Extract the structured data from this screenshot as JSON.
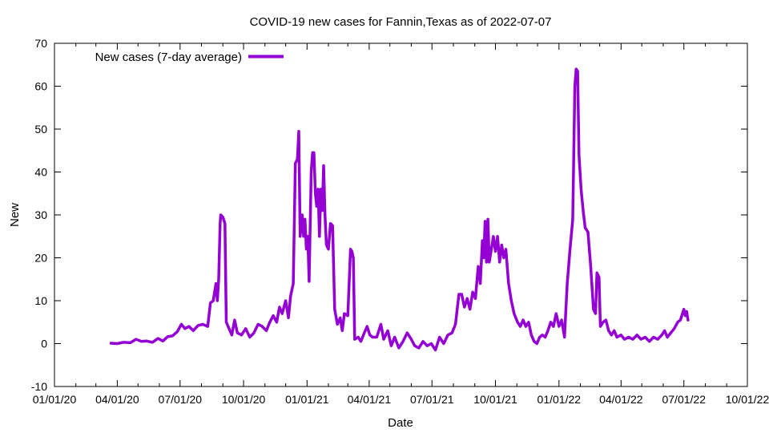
{
  "chart_data": {
    "type": "line",
    "title": "COVID-19 new cases for Fannin,Texas as of 2022-07-07",
    "xlabel": "Date",
    "ylabel": "New",
    "x_range": [
      "2020-01-01",
      "2022-10-01"
    ],
    "ylim": [
      -10,
      70
    ],
    "y_ticks": [
      -10,
      0,
      10,
      20,
      30,
      40,
      50,
      60,
      70
    ],
    "x_ticks": [
      {
        "date": "2020-01-01",
        "label": "01/01/20"
      },
      {
        "date": "2020-04-01",
        "label": "04/01/20"
      },
      {
        "date": "2020-07-01",
        "label": "07/01/20"
      },
      {
        "date": "2020-10-01",
        "label": "10/01/20"
      },
      {
        "date": "2021-01-01",
        "label": "01/01/21"
      },
      {
        "date": "2021-04-01",
        "label": "04/01/21"
      },
      {
        "date": "2021-07-01",
        "label": "07/01/21"
      },
      {
        "date": "2021-10-01",
        "label": "10/01/21"
      },
      {
        "date": "2022-01-01",
        "label": "01/01/22"
      },
      {
        "date": "2022-04-01",
        "label": "04/01/22"
      },
      {
        "date": "2022-07-01",
        "label": "07/01/22"
      },
      {
        "date": "2022-10-01",
        "label": "10/01/22"
      }
    ],
    "grid": false,
    "legend_position": "top-left",
    "series": [
      {
        "name": "New cases (7-day average)",
        "color": "#9400d3",
        "points": [
          [
            "2020-03-23",
            0.1
          ],
          [
            "2020-04-01",
            0.0
          ],
          [
            "2020-04-10",
            0.3
          ],
          [
            "2020-04-20",
            0.2
          ],
          [
            "2020-04-28",
            1.0
          ],
          [
            "2020-05-06",
            0.5
          ],
          [
            "2020-05-14",
            0.6
          ],
          [
            "2020-05-22",
            0.3
          ],
          [
            "2020-05-30",
            1.2
          ],
          [
            "2020-06-06",
            0.6
          ],
          [
            "2020-06-13",
            1.6
          ],
          [
            "2020-06-20",
            1.8
          ],
          [
            "2020-06-27",
            2.8
          ],
          [
            "2020-07-03",
            4.5
          ],
          [
            "2020-07-08",
            3.5
          ],
          [
            "2020-07-14",
            4.0
          ],
          [
            "2020-07-20",
            3.0
          ],
          [
            "2020-07-27",
            4.2
          ],
          [
            "2020-08-03",
            4.5
          ],
          [
            "2020-08-10",
            4.0
          ],
          [
            "2020-08-14",
            9.5
          ],
          [
            "2020-08-18",
            10.0
          ],
          [
            "2020-08-22",
            14.0
          ],
          [
            "2020-08-24",
            10.0
          ],
          [
            "2020-08-26",
            15.0
          ],
          [
            "2020-08-28",
            28.0
          ],
          [
            "2020-08-29",
            30.0
          ],
          [
            "2020-09-01",
            29.5
          ],
          [
            "2020-09-04",
            28.0
          ],
          [
            "2020-09-06",
            5.0
          ],
          [
            "2020-09-10",
            3.5
          ],
          [
            "2020-09-14",
            2.0
          ],
          [
            "2020-09-18",
            5.5
          ],
          [
            "2020-09-22",
            2.5
          ],
          [
            "2020-09-28",
            2.0
          ],
          [
            "2020-10-04",
            3.5
          ],
          [
            "2020-10-10",
            1.5
          ],
          [
            "2020-10-16",
            2.5
          ],
          [
            "2020-10-22",
            4.5
          ],
          [
            "2020-10-28",
            4.0
          ],
          [
            "2020-11-03",
            3.0
          ],
          [
            "2020-11-08",
            5.0
          ],
          [
            "2020-11-13",
            6.5
          ],
          [
            "2020-11-18",
            5.0
          ],
          [
            "2020-11-22",
            8.5
          ],
          [
            "2020-11-26",
            7.0
          ],
          [
            "2020-12-01",
            10.0
          ],
          [
            "2020-12-05",
            6.0
          ],
          [
            "2020-12-08",
            11.0
          ],
          [
            "2020-12-12",
            14.0
          ],
          [
            "2020-12-15",
            42.0
          ],
          [
            "2020-12-18",
            43.0
          ],
          [
            "2020-12-20",
            49.5
          ],
          [
            "2020-12-22",
            25.0
          ],
          [
            "2020-12-25",
            30.0
          ],
          [
            "2020-12-27",
            25.0
          ],
          [
            "2020-12-29",
            29.0
          ],
          [
            "2020-12-31",
            22.0
          ],
          [
            "2021-01-02",
            25.0
          ],
          [
            "2021-01-04",
            14.5
          ],
          [
            "2021-01-07",
            40.0
          ],
          [
            "2021-01-09",
            44.5
          ],
          [
            "2021-01-11",
            44.5
          ],
          [
            "2021-01-13",
            35.0
          ],
          [
            "2021-01-15",
            32.0
          ],
          [
            "2021-01-17",
            36.0
          ],
          [
            "2021-01-19",
            25.0
          ],
          [
            "2021-01-21",
            36.0
          ],
          [
            "2021-01-23",
            31.0
          ],
          [
            "2021-01-25",
            41.5
          ],
          [
            "2021-01-27",
            30.0
          ],
          [
            "2021-01-29",
            23.0
          ],
          [
            "2021-02-01",
            22.0
          ],
          [
            "2021-02-04",
            28.0
          ],
          [
            "2021-02-07",
            27.5
          ],
          [
            "2021-02-10",
            8.0
          ],
          [
            "2021-02-14",
            4.5
          ],
          [
            "2021-02-18",
            6.0
          ],
          [
            "2021-02-21",
            3.0
          ],
          [
            "2021-02-24",
            7.0
          ],
          [
            "2021-03-01",
            6.5
          ],
          [
            "2021-03-05",
            22.0
          ],
          [
            "2021-03-07",
            21.5
          ],
          [
            "2021-03-09",
            20.0
          ],
          [
            "2021-03-11",
            1.0
          ],
          [
            "2021-03-16",
            1.5
          ],
          [
            "2021-03-20",
            0.5
          ],
          [
            "2021-03-25",
            2.5
          ],
          [
            "2021-03-29",
            4.0
          ],
          [
            "2021-04-02",
            2.0
          ],
          [
            "2021-04-06",
            1.5
          ],
          [
            "2021-04-12",
            1.5
          ],
          [
            "2021-04-18",
            4.5
          ],
          [
            "2021-04-22",
            1.0
          ],
          [
            "2021-04-28",
            3.0
          ],
          [
            "2021-05-03",
            -0.5
          ],
          [
            "2021-05-08",
            1.5
          ],
          [
            "2021-05-14",
            -1.0
          ],
          [
            "2021-05-20",
            0.5
          ],
          [
            "2021-05-26",
            2.5
          ],
          [
            "2021-06-01",
            1.0
          ],
          [
            "2021-06-06",
            -0.5
          ],
          [
            "2021-06-12",
            -1.0
          ],
          [
            "2021-06-18",
            0.5
          ],
          [
            "2021-06-24",
            -0.5
          ],
          [
            "2021-06-30",
            0.0
          ],
          [
            "2021-07-06",
            -1.5
          ],
          [
            "2021-07-12",
            1.5
          ],
          [
            "2021-07-18",
            0.0
          ],
          [
            "2021-07-24",
            2.0
          ],
          [
            "2021-07-30",
            2.5
          ],
          [
            "2021-08-04",
            4.5
          ],
          [
            "2021-08-09",
            11.5
          ],
          [
            "2021-08-13",
            11.5
          ],
          [
            "2021-08-17",
            8.5
          ],
          [
            "2021-08-21",
            10.5
          ],
          [
            "2021-08-25",
            8.0
          ],
          [
            "2021-08-29",
            12.0
          ],
          [
            "2021-09-02",
            10.5
          ],
          [
            "2021-09-06",
            18.0
          ],
          [
            "2021-09-09",
            14.0
          ],
          [
            "2021-09-12",
            24.0
          ],
          [
            "2021-09-14",
            20.0
          ],
          [
            "2021-09-16",
            28.5
          ],
          [
            "2021-09-18",
            19.0
          ],
          [
            "2021-09-20",
            29.0
          ],
          [
            "2021-09-22",
            19.0
          ],
          [
            "2021-09-25",
            22.0
          ],
          [
            "2021-09-28",
            25.0
          ],
          [
            "2021-10-01",
            21.5
          ],
          [
            "2021-10-04",
            25.0
          ],
          [
            "2021-10-07",
            19.0
          ],
          [
            "2021-10-10",
            23.0
          ],
          [
            "2021-10-13",
            20.0
          ],
          [
            "2021-10-16",
            22.0
          ],
          [
            "2021-10-20",
            14.0
          ],
          [
            "2021-10-24",
            10.0
          ],
          [
            "2021-10-28",
            7.0
          ],
          [
            "2021-11-02",
            5.0
          ],
          [
            "2021-11-06",
            4.0
          ],
          [
            "2021-11-10",
            5.5
          ],
          [
            "2021-11-14",
            4.0
          ],
          [
            "2021-11-18",
            5.0
          ],
          [
            "2021-11-22",
            2.0
          ],
          [
            "2021-11-26",
            0.5
          ],
          [
            "2021-11-30",
            0.0
          ],
          [
            "2021-12-04",
            1.5
          ],
          [
            "2021-12-08",
            2.0
          ],
          [
            "2021-12-12",
            1.5
          ],
          [
            "2021-12-16",
            3.0
          ],
          [
            "2021-12-20",
            5.0
          ],
          [
            "2021-12-24",
            4.0
          ],
          [
            "2021-12-28",
            7.0
          ],
          [
            "2022-01-01",
            4.0
          ],
          [
            "2022-01-05",
            5.5
          ],
          [
            "2022-01-09",
            1.5
          ],
          [
            "2022-01-13",
            14.0
          ],
          [
            "2022-01-17",
            22.0
          ],
          [
            "2022-01-21",
            29.0
          ],
          [
            "2022-01-24",
            60.0
          ],
          [
            "2022-01-26",
            64.0
          ],
          [
            "2022-01-28",
            63.5
          ],
          [
            "2022-01-30",
            44.0
          ],
          [
            "2022-02-02",
            36.0
          ],
          [
            "2022-02-05",
            31.0
          ],
          [
            "2022-02-08",
            27.0
          ],
          [
            "2022-02-12",
            26.0
          ],
          [
            "2022-02-16",
            18.0
          ],
          [
            "2022-02-20",
            8.0
          ],
          [
            "2022-02-23",
            7.0
          ],
          [
            "2022-02-25",
            16.5
          ],
          [
            "2022-02-28",
            15.5
          ],
          [
            "2022-03-02",
            4.0
          ],
          [
            "2022-03-06",
            5.0
          ],
          [
            "2022-03-10",
            5.5
          ],
          [
            "2022-03-14",
            3.0
          ],
          [
            "2022-03-18",
            2.0
          ],
          [
            "2022-03-22",
            3.0
          ],
          [
            "2022-03-26",
            1.5
          ],
          [
            "2022-04-01",
            2.0
          ],
          [
            "2022-04-06",
            1.0
          ],
          [
            "2022-04-12",
            1.5
          ],
          [
            "2022-04-18",
            1.0
          ],
          [
            "2022-04-24",
            2.0
          ],
          [
            "2022-04-30",
            1.0
          ],
          [
            "2022-05-06",
            1.5
          ],
          [
            "2022-05-12",
            0.5
          ],
          [
            "2022-05-18",
            1.5
          ],
          [
            "2022-05-24",
            1.0
          ],
          [
            "2022-05-30",
            2.0
          ],
          [
            "2022-06-03",
            3.0
          ],
          [
            "2022-06-07",
            1.5
          ],
          [
            "2022-06-12",
            2.5
          ],
          [
            "2022-06-17",
            3.5
          ],
          [
            "2022-06-22",
            5.0
          ],
          [
            "2022-06-26",
            5.5
          ],
          [
            "2022-06-29",
            7.0
          ],
          [
            "2022-07-01",
            8.0
          ],
          [
            "2022-07-03",
            6.5
          ],
          [
            "2022-07-05",
            7.5
          ],
          [
            "2022-07-07",
            5.5
          ]
        ]
      }
    ]
  }
}
